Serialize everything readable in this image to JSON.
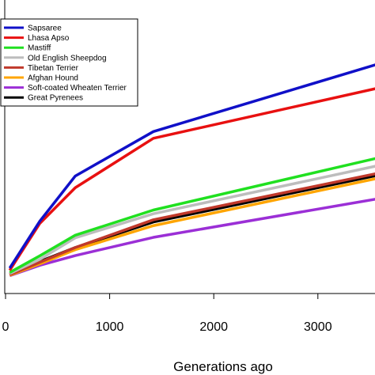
{
  "chart_data": {
    "type": "line",
    "xlabel": "Generations ago",
    "ylabel": "",
    "title": "",
    "xlim": [
      0,
      3600
    ],
    "ylim": [
      0,
      1
    ],
    "grid": false,
    "legend_position": "top-left",
    "x_ticks": [
      0,
      1000,
      2000,
      3000
    ],
    "x_tick_labels": [
      "0",
      "1000",
      "2000",
      "3000"
    ],
    "x": [
      40,
      330,
      670,
      1420,
      3600
    ],
    "series": [
      {
        "name": "Sapsaree",
        "color": "#1010c8",
        "values": [
          0.055,
          0.272,
          0.48,
          0.685,
          1.0
        ]
      },
      {
        "name": "Lhasa Apso",
        "color": "#e81010",
        "values": [
          0.045,
          0.262,
          0.426,
          0.654,
          0.888
        ]
      },
      {
        "name": "Mastiff",
        "color": "#20e020",
        "values": [
          0.035,
          0.112,
          0.207,
          0.323,
          0.566
        ]
      },
      {
        "name": "Old English Sheepdog",
        "color": "#bdbdbd",
        "values": [
          0.03,
          0.096,
          0.195,
          0.306,
          0.53
        ]
      },
      {
        "name": "Tibetan Terrier",
        "color": "#c0392b",
        "values": [
          0.025,
          0.082,
          0.15,
          0.278,
          0.495
        ]
      },
      {
        "name": "Afghan Hound",
        "color": "#ffa500",
        "values": [
          0.022,
          0.075,
          0.14,
          0.251,
          0.472
        ]
      },
      {
        "name": "Soft-coated Wheaten Terrier",
        "color": "#9b2fd6",
        "values": [
          0.02,
          0.068,
          0.113,
          0.197,
          0.377
        ]
      },
      {
        "name": "Great Pyrenees",
        "color": "#000000",
        "values": [
          0.028,
          0.086,
          0.15,
          0.268,
          0.486
        ]
      }
    ]
  }
}
